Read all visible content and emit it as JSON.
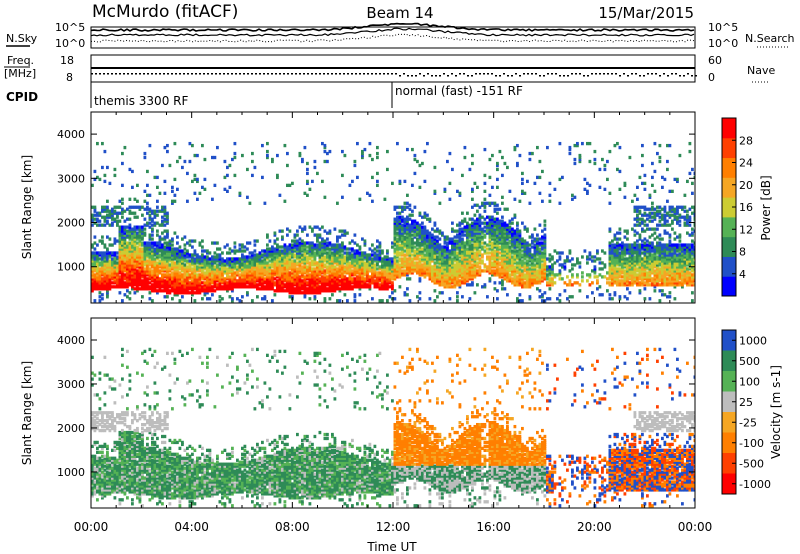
{
  "header": {
    "radar": "McMurdo (fitACF)",
    "beam": "Beam 14",
    "date": "15/Mar/2015"
  },
  "noise_panel": {
    "left_label": "N.Sky",
    "right_label": "N.Search",
    "left_ticks": [
      "10^5",
      "10^0"
    ],
    "right_ticks": [
      "10^5",
      "10^0"
    ]
  },
  "freq_panel": {
    "left_label_1": "Freq.",
    "left_label_2": "[MHz]",
    "right_label": "Nave",
    "left_ticks": [
      "18",
      "8"
    ],
    "right_ticks": [
      "60",
      "0"
    ]
  },
  "cpid": {
    "label": "CPID",
    "modes": [
      {
        "name": "themis 3300 RF",
        "start_hour": 0,
        "end_hour": 12
      },
      {
        "name": "normal (fast) -151 RF",
        "start_hour": 12,
        "end_hour": 24
      }
    ]
  },
  "colors": {
    "power": [
      "#0000ff",
      "#2050c8",
      "#2e8b57",
      "#55b255",
      "#cccc33",
      "#f5a623",
      "#ff7f00",
      "#ff4000",
      "#ff0000"
    ],
    "velocity": [
      "#2050c8",
      "#2e8b57",
      "#55b255",
      "#bdbdbd",
      "#f5a623",
      "#ff7f00",
      "#ff4000",
      "#ff0000"
    ]
  },
  "chart_data": [
    {
      "type": "heatmap",
      "title": "",
      "xlabel": "",
      "ylabel": "Slant Range [km]",
      "x_ticks": [
        "00:00",
        "04:00",
        "08:00",
        "12:00",
        "16:00",
        "20:00",
        "00:00"
      ],
      "xlim": [
        0,
        24
      ],
      "ylim": [
        180,
        4500
      ],
      "y_ticks": [
        1000,
        2000,
        3000,
        4000
      ],
      "colorbar": {
        "label": "Power [dB]",
        "ticks": [
          4,
          8,
          12,
          16,
          20,
          24,
          28
        ],
        "range": [
          0,
          32
        ]
      }
    },
    {
      "type": "heatmap",
      "title": "",
      "xlabel": "Time UT",
      "ylabel": "Slant Range [km]",
      "x_ticks": [
        "00:00",
        "04:00",
        "08:00",
        "12:00",
        "16:00",
        "20:00",
        "00:00"
      ],
      "xlim": [
        0,
        24
      ],
      "ylim": [
        180,
        4500
      ],
      "y_ticks": [
        1000,
        2000,
        3000,
        4000
      ],
      "colorbar": {
        "label": "Velocity [m s-1]",
        "ticks": [
          "1000",
          "500",
          "100",
          "25",
          "-25",
          "-100",
          "-500",
          "-1000"
        ]
      }
    }
  ]
}
